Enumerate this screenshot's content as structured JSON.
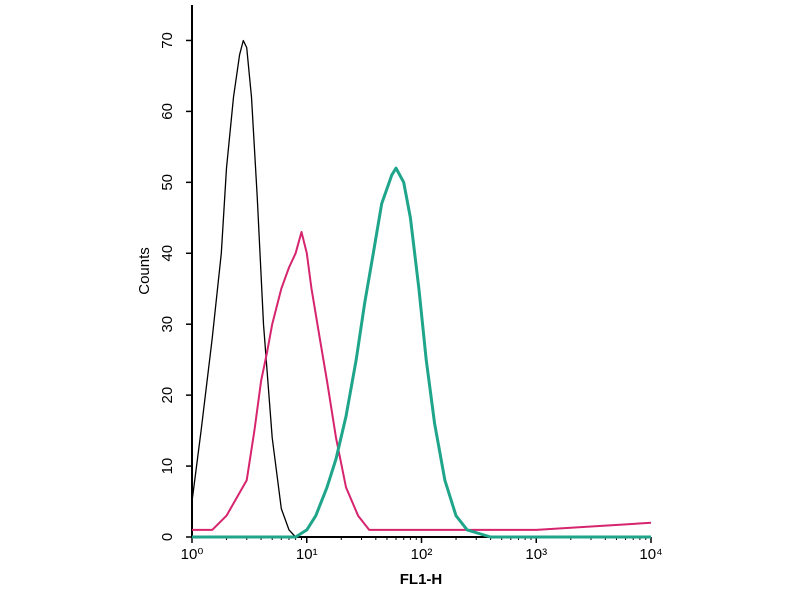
{
  "chart_data": {
    "type": "line",
    "x_label": "FL1-H",
    "y_label": "Counts",
    "xscale": "log",
    "xlim": [
      1,
      10000
    ],
    "xticks": [
      {
        "value": 1,
        "label": "10⁰"
      },
      {
        "value": 10,
        "label": "10¹"
      },
      {
        "value": 100,
        "label": "10²"
      },
      {
        "value": 1000,
        "label": "10³"
      },
      {
        "value": 10000,
        "label": "10⁴"
      }
    ],
    "ylim": [
      0,
      75
    ],
    "yticks": [
      0,
      10,
      20,
      30,
      40,
      50,
      60,
      70
    ],
    "series": [
      {
        "color": "#000000",
        "x": [
          1,
          1.2,
          1.5,
          1.8,
          2.0,
          2.3,
          2.6,
          2.8,
          3.0,
          3.3,
          3.7,
          4.2,
          5,
          6,
          7,
          8,
          10
        ],
        "values": [
          5,
          15,
          28,
          40,
          52,
          62,
          68,
          70,
          69,
          62,
          48,
          30,
          14,
          4,
          1,
          0,
          0
        ]
      },
      {
        "color": "#d6246e",
        "x": [
          1,
          1.5,
          2,
          3,
          3.5,
          4,
          4.5,
          5,
          6,
          7,
          8,
          9,
          10,
          11,
          13,
          15,
          18,
          22,
          28,
          35,
          50,
          100,
          1000,
          10000
        ],
        "values": [
          1,
          1,
          3,
          8,
          15,
          22,
          26,
          30,
          35,
          38,
          40,
          43,
          40,
          35,
          28,
          22,
          14,
          7,
          3,
          1,
          1,
          1,
          1,
          2
        ]
      },
      {
        "color": "#1fa58a",
        "x": [
          1,
          8,
          10,
          12,
          15,
          18,
          22,
          27,
          32,
          38,
          45,
          55,
          60,
          70,
          80,
          95,
          110,
          130,
          160,
          200,
          250,
          400,
          10000
        ],
        "values": [
          0,
          0,
          1,
          3,
          7,
          11,
          17,
          25,
          33,
          40,
          47,
          51,
          52,
          50,
          45,
          35,
          25,
          16,
          8,
          3,
          1,
          0,
          0
        ]
      }
    ]
  }
}
